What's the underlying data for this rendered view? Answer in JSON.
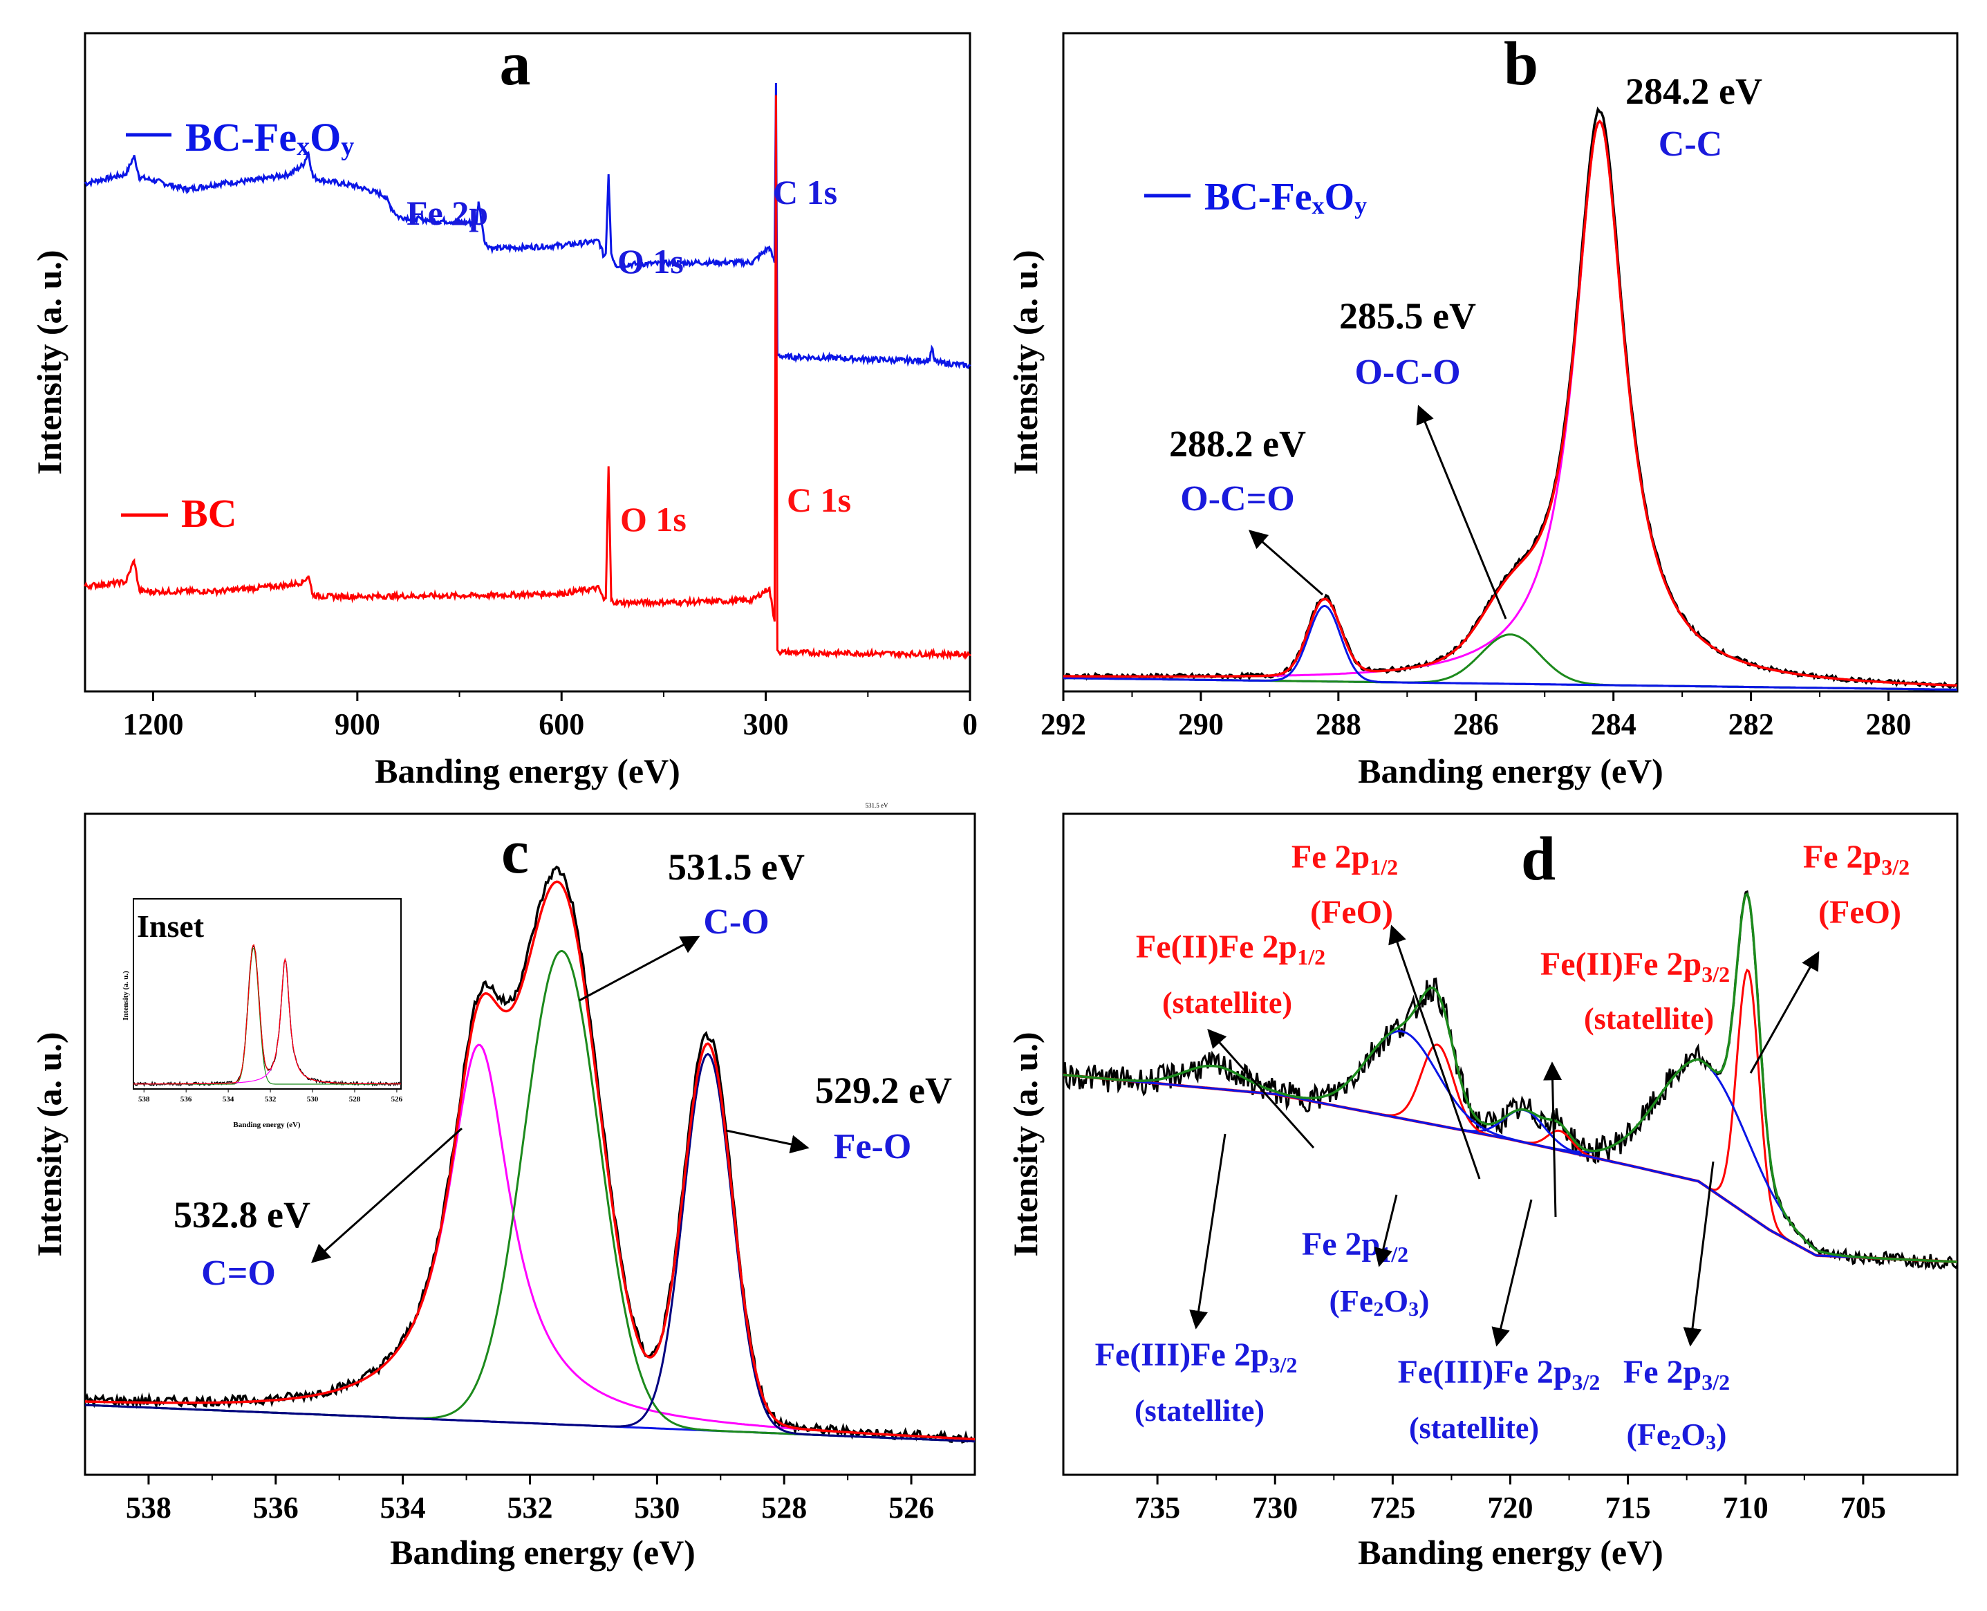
{
  "colors": {
    "black": "#000000",
    "blue": "#0b16e6",
    "red": "#ff0000",
    "green": "#1c8a1c",
    "magenta": "#ff00ff",
    "navy": "#000080",
    "label_blue": "#1a1adc",
    "label_red": "#ff1010"
  },
  "chart_data": [
    {
      "panel": "a",
      "type": "line",
      "xlabel": "Banding energy (eV)",
      "ylabel": "Intensity (a. u.)",
      "xlim": [
        1300,
        0
      ],
      "xticks": [
        "1200",
        "900",
        "600",
        "300",
        "0"
      ],
      "tick_values": [
        1200,
        900,
        600,
        300,
        0
      ],
      "ylim": [
        0,
        100
      ],
      "series": [
        {
          "name": "BC-FexOy",
          "legend": "BC-FexOy",
          "legend_base": "BC-Fe",
          "legend_sub_x": "x",
          "legend_mid": "O",
          "legend_sub_y": "y",
          "color": "blue",
          "x": [
            1300,
            1240,
            1228,
            1220,
            1200,
            1150,
            1100,
            1050,
            1000,
            980,
            972,
            965,
            950,
            900,
            860,
            850,
            840,
            800,
            725,
            722,
            712,
            700,
            650,
            600,
            545,
            538,
            535,
            531,
            527,
            520,
            500,
            400,
            320,
            295,
            287,
            285,
            283,
            280,
            270,
            200,
            100,
            60,
            56,
            52,
            40,
            0
          ],
          "y": [
            83.5,
            85,
            88,
            84.5,
            84,
            82.5,
            83.5,
            84,
            85,
            86.5,
            88.5,
            84.5,
            84,
            83,
            81.5,
            79.5,
            78,
            77.5,
            77,
            80.5,
            73.5,
            72.8,
            73,
            73.3,
            74,
            71.5,
            72,
            85,
            72,
            70,
            70.2,
            70.5,
            70.5,
            73,
            70.5,
            100,
            55.5,
            55.2,
            55,
            54.8,
            54.4,
            54.4,
            56.5,
            54.2,
            54,
            53.5
          ]
        },
        {
          "name": "BC",
          "legend": "BC",
          "color": "red",
          "x": [
            1300,
            1240,
            1228,
            1220,
            1200,
            1100,
            1000,
            980,
            972,
            965,
            950,
            900,
            800,
            700,
            600,
            545,
            538,
            535,
            531,
            527,
            520,
            500,
            400,
            320,
            295,
            287,
            285,
            283,
            280,
            270,
            200,
            100,
            0
          ],
          "y": [
            17.3,
            18,
            21.5,
            16.5,
            16.4,
            16.5,
            17.5,
            18,
            19,
            15.8,
            15.6,
            15.6,
            15.7,
            15.8,
            16.1,
            17,
            15,
            15.2,
            37,
            15,
            14.6,
            14.6,
            14.7,
            15,
            17,
            11.5,
            98,
            6.8,
            6.5,
            6.4,
            6.3,
            6.2,
            6.1
          ]
        }
      ],
      "annotations": [
        {
          "text": "Fe 2p",
          "color": "blue"
        },
        {
          "text": "O 1s",
          "color": "blue"
        },
        {
          "text": "C 1s",
          "color": "blue"
        },
        {
          "text": "O 1s",
          "color": "red"
        },
        {
          "text": "C 1s",
          "color": "red"
        }
      ]
    },
    {
      "panel": "b",
      "type": "line",
      "xlabel": "Banding energy (eV)",
      "ylabel": "Intensity (a. u.)",
      "xlim": [
        292,
        279
      ],
      "xticks": [
        "292",
        "290",
        "288",
        "286",
        "284",
        "282",
        "280"
      ],
      "tick_values": [
        292,
        290,
        288,
        286,
        284,
        282,
        280
      ],
      "ylim": [
        0,
        100
      ],
      "legend": "BC-FexOy",
      "legend_base": "BC-Fe",
      "legend_sub_x": "x",
      "legend_mid": "O",
      "legend_sub_y": "y",
      "baseline": {
        "start": 2.3,
        "end": 0.3
      },
      "peaks": [
        {
          "name": "C-C",
          "center": 284.2,
          "height": 97,
          "fwhm": 0.9,
          "color": "magenta",
          "shape": "lorentzian"
        },
        {
          "name": "O-C-O",
          "center": 285.5,
          "height": 8.5,
          "fwhm": 1.0,
          "color": "green",
          "shape": "gaussian"
        },
        {
          "name": "O-C=O",
          "center": 288.2,
          "height": 13,
          "fwhm": 0.55,
          "color": "blue",
          "shape": "gaussian"
        }
      ],
      "annotations": [
        {
          "energy": "284.2 eV",
          "bond": "C-C"
        },
        {
          "energy": "285.5 eV",
          "bond": "O-C-O"
        },
        {
          "energy": "288.2 eV",
          "bond": "O-C=O"
        }
      ]
    },
    {
      "panel": "c",
      "type": "line",
      "xlabel": "Banding energy (eV)",
      "ylabel": "Intensity (a. u.)",
      "xlim": [
        539,
        525
      ],
      "xticks": [
        "538",
        "536",
        "534",
        "532",
        "530",
        "528",
        "526"
      ],
      "tick_values": [
        538,
        536,
        534,
        532,
        530,
        528,
        526
      ],
      "ylim": [
        0,
        100
      ],
      "baseline": {
        "start": 11.5,
        "end": 5.5
      },
      "peaks": [
        {
          "name": "C=O",
          "center": 532.8,
          "height": 62,
          "fwhm": 1.2,
          "color": "magenta",
          "shape": "lorentzian"
        },
        {
          "name": "C-O",
          "center": 531.5,
          "height": 78,
          "fwhm": 1.4,
          "color": "green",
          "shape": "gaussian"
        },
        {
          "name": "Fe-O",
          "center": 529.2,
          "height": 62,
          "fwhm": 0.9,
          "color": "navy",
          "shape": "gaussian"
        }
      ],
      "annotations": [
        {
          "energy": "531.5 eV",
          "bond": "C-O"
        },
        {
          "energy": "532.8 eV",
          "bond": "C=O"
        },
        {
          "energy": "529.2 eV",
          "bond": "Fe-O"
        }
      ],
      "tiny_label": "531.5 eV",
      "inset": {
        "title": "Inset",
        "xlabel": "Banding energy (eV)",
        "ylabel": "Intensity (a. u.)",
        "xticks": [
          "538",
          "536",
          "534",
          "532",
          "530",
          "528",
          "526"
        ],
        "tick_values": [
          538,
          536,
          534,
          532,
          530,
          528,
          526
        ]
      }
    },
    {
      "panel": "d",
      "type": "line",
      "xlabel": "Banding energy (eV)",
      "ylabel": "Intensity (a. u.)",
      "xlim": [
        739,
        701
      ],
      "xticks": [
        "735",
        "730",
        "725",
        "720",
        "715",
        "710",
        "705"
      ],
      "tick_values": [
        735,
        730,
        725,
        720,
        715,
        710,
        705
      ],
      "ylim": [
        0,
        100
      ],
      "background": {
        "x": [
          739,
          730,
          720,
          715,
          712,
          709,
          707,
          701
        ],
        "y": [
          62,
          59,
          52,
          48,
          45.5,
          38,
          34,
          33
        ]
      },
      "peaks": [
        {
          "name": "Fe 2p3/2 (FeO)",
          "center": 709.9,
          "height": 38,
          "fwhm": 1.1,
          "color": "red"
        },
        {
          "name": "Fe 2p3/2 (Fe2O3)",
          "center": 711.8,
          "height": 19,
          "fwhm": 4.5,
          "color": "blue"
        },
        {
          "name": "Fe(II)Fe 2p3/2 (statellite)",
          "center": 717.9,
          "height": 3,
          "fwhm": 1.2,
          "color": "red"
        },
        {
          "name": "Fe(III)Fe 2p3/2 (statellite)",
          "center": 719.4,
          "height": 5,
          "fwhm": 2.0,
          "color": "blue"
        },
        {
          "name": "Fe 2p1/2 (FeO)",
          "center": 723.1,
          "height": 12.5,
          "fwhm": 1.6,
          "color": "red"
        },
        {
          "name": "Fe 2p1/2 (Fe2O3)",
          "center": 724.6,
          "height": 13.5,
          "fwhm": 3.5,
          "color": "blue"
        },
        {
          "name": "Fe(III)Fe 2p3/2 (statellite)",
          "center": 732.6,
          "height": 3.5,
          "fwhm": 3.0,
          "color": "blue"
        }
      ],
      "labels": {
        "fe2p12_feo_a": "Fe 2p",
        "fe2p12_feo_sub": "1/2",
        "fe2p12_feo_b": "(FeO)",
        "fe2p32_feo_a": "Fe 2p",
        "fe2p32_feo_sub": "3/2",
        "fe2p32_feo_b": "(FeO)",
        "fe2_12_a": "Fe(II)Fe 2p",
        "fe2_12_sub": "1/2",
        "fe2_12_b": "(statellite)",
        "fe2_32_a": "Fe(II)Fe 2p",
        "fe2_32_sub": "3/2",
        "fe2_32_b": "(statellite)",
        "fe2p12_fe2o3_a": "Fe 2p",
        "fe2p12_fe2o3_sub": "1/2",
        "fe2p12_fe2o3_b1": "(Fe",
        "fe2p12_fe2o3_b2": "2",
        "fe2p12_fe2o3_b3": "O",
        "fe2p12_fe2o3_b4": "3",
        "fe2p12_fe2o3_b5": ")",
        "fe3_32_left_a": "Fe(III)Fe 2p",
        "fe3_32_left_sub": "3/2",
        "fe3_32_left_b": "(statellite)",
        "fe3_32_mid_a": "Fe(III)Fe 2p",
        "fe3_32_mid_sub": "3/2",
        "fe3_32_mid_b": "(statellite)",
        "fe2p32_fe2o3_a": "Fe 2p",
        "fe2p32_fe2o3_sub": "3/2",
        "fe2p32_fe2o3_b1": "(Fe",
        "fe2p32_fe2o3_b2": "2",
        "fe2p32_fe2o3_b3": "O",
        "fe2p32_fe2o3_b4": "3",
        "fe2p32_fe2o3_b5": ")"
      }
    }
  ],
  "panel_letters": [
    "a",
    "b",
    "c",
    "d"
  ]
}
